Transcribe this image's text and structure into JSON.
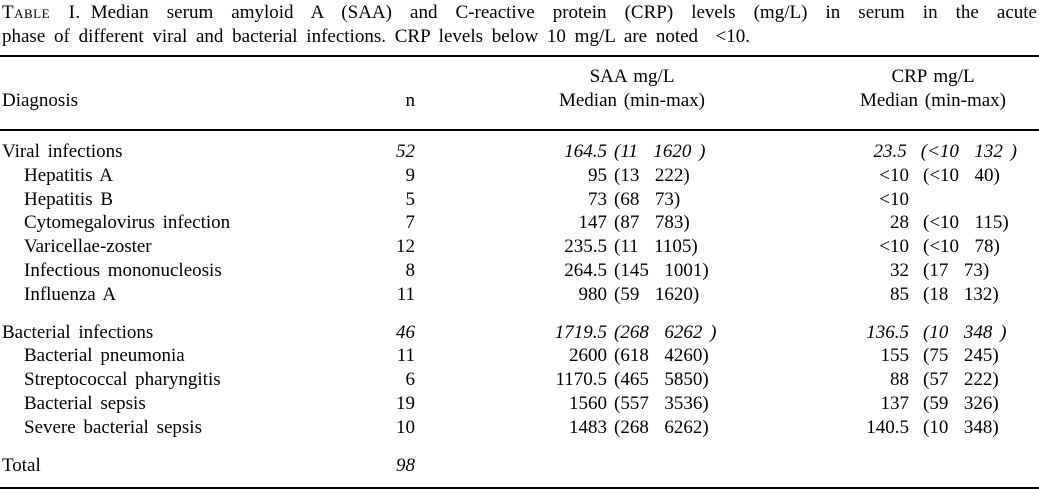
{
  "caption": {
    "label": "Table I.",
    "line1": "Median serum amyloid A (SAA) and C-reactive protein (CRP) levels (mg/L) in serum in the acute",
    "line2": "phase of different viral and bacterial infections. CRP levels below 10 mg/L are noted  <10."
  },
  "headers": {
    "diagnosis": "Diagnosis",
    "n": "n",
    "saa": {
      "line1": "SAA mg/L",
      "line2": "Median (min-max)"
    },
    "crp": {
      "line1": "CRP mg/L",
      "line2": "Median (min-max)"
    }
  },
  "table": {
    "rows": [
      {
        "label": "Viral infections",
        "indent": false,
        "italic": true,
        "gap_before": false,
        "n": "52",
        "saa_median": "164.5",
        "saa_range": "(11  1620 )",
        "crp_median": "23.5",
        "crp_range": "(<10  132 )"
      },
      {
        "label": "Hepatitis A",
        "indent": true,
        "italic": false,
        "gap_before": false,
        "n": "9",
        "saa_median": "95",
        "saa_range": "(13  222)",
        "crp_median": "<10",
        "crp_range": "(<10  40)"
      },
      {
        "label": "Hepatitis B",
        "indent": true,
        "italic": false,
        "gap_before": false,
        "n": "5",
        "saa_median": "73",
        "saa_range": "(68  73)",
        "crp_median": "<10",
        "crp_range": ""
      },
      {
        "label": "Cytomegalovirus infection",
        "indent": true,
        "italic": false,
        "gap_before": false,
        "n": "7",
        "saa_median": "147",
        "saa_range": "(87  783)",
        "crp_median": "28",
        "crp_range": "(<10  115)"
      },
      {
        "label": "Varicellae-zoster",
        "indent": true,
        "italic": false,
        "gap_before": false,
        "n": "12",
        "saa_median": "235.5",
        "saa_range": "(11  1105)",
        "crp_median": "<10",
        "crp_range": "(<10  78)"
      },
      {
        "label": "Infectious mononucleosis",
        "indent": true,
        "italic": false,
        "gap_before": false,
        "n": "8",
        "saa_median": "264.5",
        "saa_range": "(145  1001)",
        "crp_median": "32",
        "crp_range": "(17  73)"
      },
      {
        "label": "Influenza A",
        "indent": true,
        "italic": false,
        "gap_before": false,
        "n": "11",
        "saa_median": "980",
        "saa_range": "(59  1620)",
        "crp_median": "85",
        "crp_range": "(18  132)"
      },
      {
        "label": "Bacterial infections",
        "indent": false,
        "italic": true,
        "gap_before": true,
        "n": "46",
        "saa_median": "1719.5",
        "saa_range": "(268  6262 )",
        "crp_median": "136.5",
        "crp_range": "(10  348 )"
      },
      {
        "label": "Bacterial pneumonia",
        "indent": true,
        "italic": false,
        "gap_before": false,
        "n": "11",
        "saa_median": "2600",
        "saa_range": "(618  4260)",
        "crp_median": "155",
        "crp_range": "(75  245)"
      },
      {
        "label": "Streptococcal pharyngitis",
        "indent": true,
        "italic": false,
        "gap_before": false,
        "n": "6",
        "saa_median": "1170.5",
        "saa_range": "(465  5850)",
        "crp_median": "88",
        "crp_range": "(57  222)"
      },
      {
        "label": "Bacterial sepsis",
        "indent": true,
        "italic": false,
        "gap_before": false,
        "n": "19",
        "saa_median": "1560",
        "saa_range": "(557  3536)",
        "crp_median": "137",
        "crp_range": "(59  326)"
      },
      {
        "label": "Severe bacterial sepsis",
        "indent": true,
        "italic": false,
        "gap_before": false,
        "n": "10",
        "saa_median": "1483",
        "saa_range": "(268  6262)",
        "crp_median": "140.5",
        "crp_range": "(10  348)"
      },
      {
        "label": "Total",
        "indent": false,
        "italic": true,
        "gap_before": true,
        "n": "98"
      }
    ]
  }
}
